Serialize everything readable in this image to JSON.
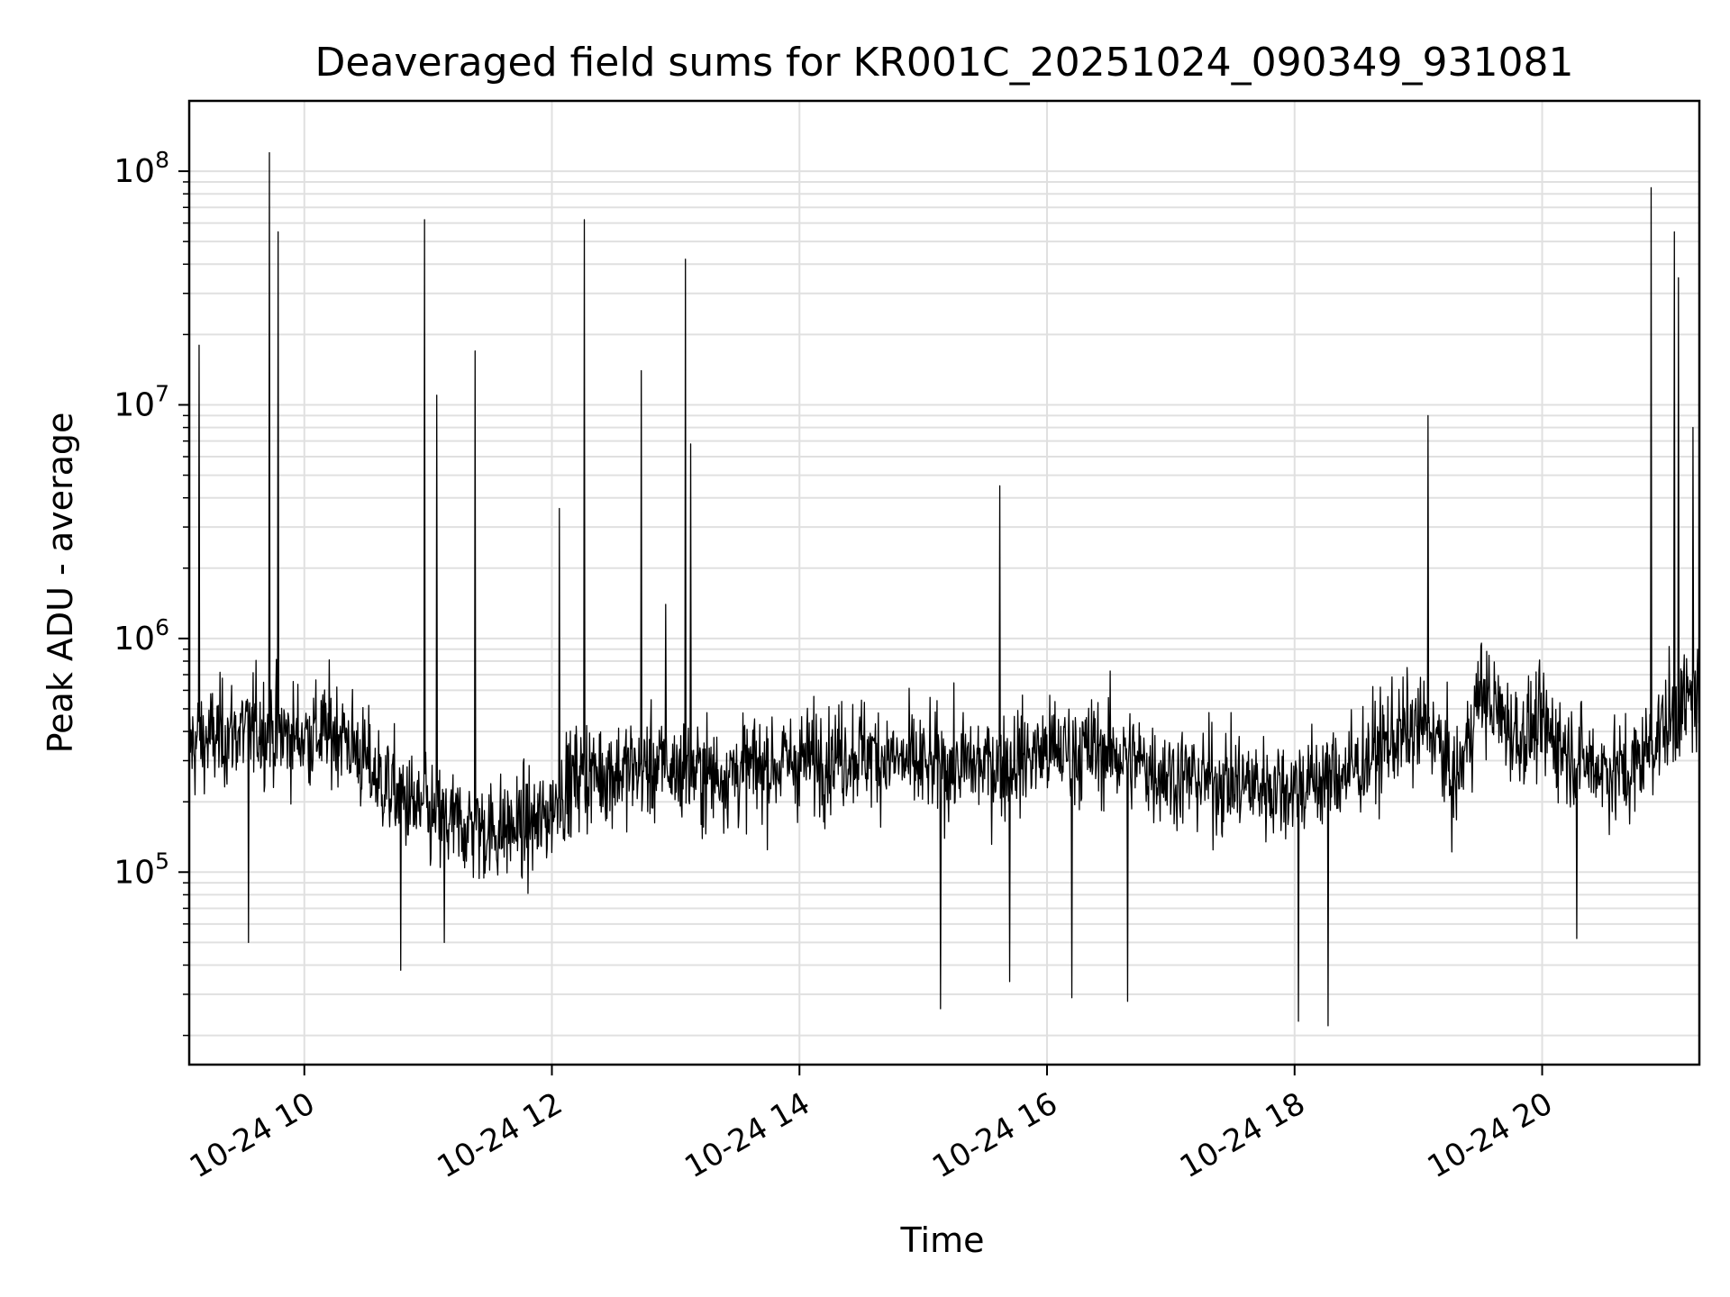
{
  "chart_data": {
    "type": "line",
    "title": "Deaveraged field sums for KR001C_20251024_090349_931081",
    "xlabel": "Time",
    "ylabel": "Peak ADU - average",
    "yscale": "log",
    "ylim": [
      15000,
      200000000
    ],
    "xlim_hours": [
      9.07,
      21.27
    ],
    "grid": true,
    "line_color": "#000000",
    "grid_color": "#e0e0e0",
    "x_ticks": [
      {
        "hour": 10,
        "label": "10-24 10"
      },
      {
        "hour": 12,
        "label": "10-24 12"
      },
      {
        "hour": 14,
        "label": "10-24 14"
      },
      {
        "hour": 16,
        "label": "10-24 16"
      },
      {
        "hour": 18,
        "label": "10-24 18"
      },
      {
        "hour": 20,
        "label": "10-24 20"
      }
    ],
    "y_ticks": [
      {
        "value": 100000,
        "base": "10",
        "exp": "5"
      },
      {
        "value": 1000000,
        "base": "10",
        "exp": "6"
      },
      {
        "value": 10000000,
        "base": "10",
        "exp": "7"
      },
      {
        "value": 100000000,
        "base": "10",
        "exp": "8"
      }
    ],
    "baseline_profile": [
      {
        "hour": 9.07,
        "value": 350000
      },
      {
        "hour": 9.6,
        "value": 420000
      },
      {
        "hour": 9.9,
        "value": 380000
      },
      {
        "hour": 10.3,
        "value": 400000
      },
      {
        "hour": 10.6,
        "value": 250000
      },
      {
        "hour": 11.0,
        "value": 170000
      },
      {
        "hour": 11.5,
        "value": 150000
      },
      {
        "hour": 11.9,
        "value": 160000
      },
      {
        "hour": 12.2,
        "value": 260000
      },
      {
        "hour": 12.8,
        "value": 280000
      },
      {
        "hour": 13.3,
        "value": 260000
      },
      {
        "hour": 14.0,
        "value": 300000
      },
      {
        "hour": 14.5,
        "value": 330000
      },
      {
        "hour": 15.0,
        "value": 280000
      },
      {
        "hour": 15.6,
        "value": 290000
      },
      {
        "hour": 16.0,
        "value": 330000
      },
      {
        "hour": 16.5,
        "value": 330000
      },
      {
        "hour": 17.0,
        "value": 260000
      },
      {
        "hour": 17.5,
        "value": 240000
      },
      {
        "hour": 18.0,
        "value": 230000
      },
      {
        "hour": 18.5,
        "value": 280000
      },
      {
        "hour": 18.8,
        "value": 380000
      },
      {
        "hour": 19.1,
        "value": 420000
      },
      {
        "hour": 19.3,
        "value": 230000
      },
      {
        "hour": 19.5,
        "value": 600000
      },
      {
        "hour": 19.8,
        "value": 380000
      },
      {
        "hour": 20.0,
        "value": 420000
      },
      {
        "hour": 20.3,
        "value": 300000
      },
      {
        "hour": 20.7,
        "value": 260000
      },
      {
        "hour": 20.95,
        "value": 400000
      },
      {
        "hour": 21.2,
        "value": 550000
      },
      {
        "hour": 21.27,
        "value": 550000
      }
    ],
    "spikes": [
      {
        "hour": 9.15,
        "value": 18000000
      },
      {
        "hour": 9.72,
        "value": 120000000
      },
      {
        "hour": 9.79,
        "value": 55000000
      },
      {
        "hour": 10.97,
        "value": 62000000
      },
      {
        "hour": 11.07,
        "value": 11000000
      },
      {
        "hour": 11.38,
        "value": 17000000
      },
      {
        "hour": 12.06,
        "value": 3600000
      },
      {
        "hour": 12.26,
        "value": 62000000
      },
      {
        "hour": 12.72,
        "value": 14000000
      },
      {
        "hour": 12.92,
        "value": 1400000
      },
      {
        "hour": 13.08,
        "value": 42000000
      },
      {
        "hour": 13.12,
        "value": 6800000
      },
      {
        "hour": 15.62,
        "value": 4500000
      },
      {
        "hour": 19.08,
        "value": 9000000
      },
      {
        "hour": 20.88,
        "value": 85000000
      },
      {
        "hour": 21.07,
        "value": 55000000
      },
      {
        "hour": 21.1,
        "value": 35000000
      },
      {
        "hour": 21.22,
        "value": 8000000
      }
    ],
    "dips": [
      {
        "hour": 9.55,
        "value": 50000
      },
      {
        "hour": 10.78,
        "value": 38000
      },
      {
        "hour": 11.13,
        "value": 50000
      },
      {
        "hour": 15.14,
        "value": 26000
      },
      {
        "hour": 15.7,
        "value": 34000
      },
      {
        "hour": 16.2,
        "value": 29000
      },
      {
        "hour": 16.65,
        "value": 28000
      },
      {
        "hour": 18.03,
        "value": 23000
      },
      {
        "hour": 18.27,
        "value": 22000
      },
      {
        "hour": 20.28,
        "value": 52000
      }
    ]
  }
}
